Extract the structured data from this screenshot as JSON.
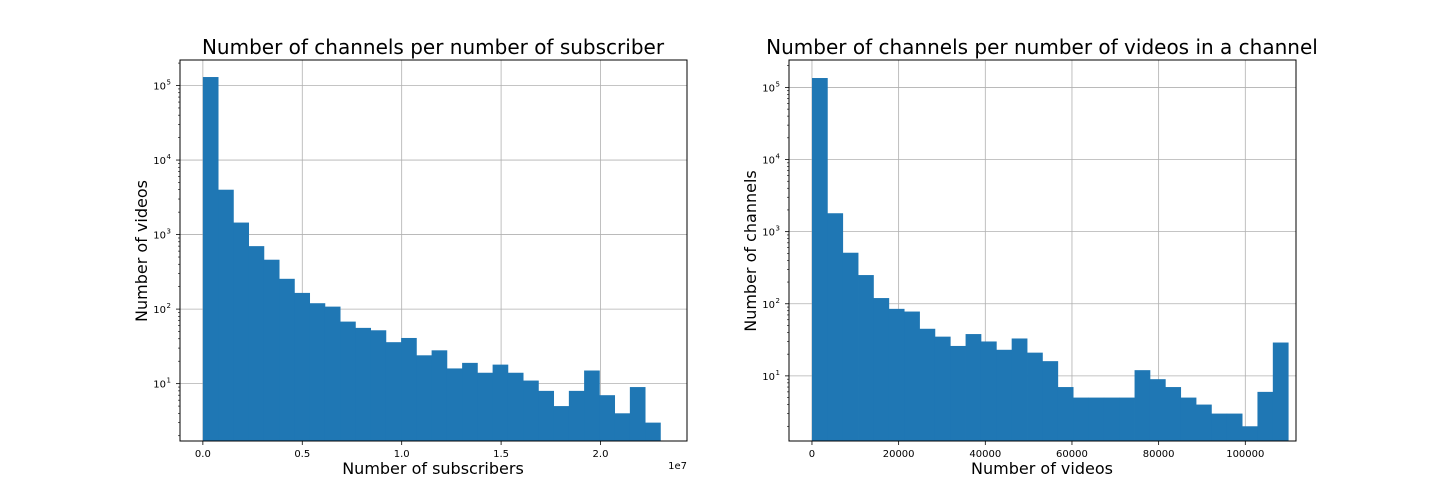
{
  "chart_data": [
    {
      "type": "bar",
      "title": "Number of channels per number of subscriber",
      "xlabel": "Number of subscribers",
      "ylabel": "Number of videos",
      "x_offset_label": "1e7",
      "x_ticks": [
        0.0,
        0.5,
        1.0,
        1.5,
        2.0
      ],
      "x_tick_labels": [
        "0.0",
        "0.5",
        "1.0",
        "1.5",
        "2.0"
      ],
      "xlim": [
        -0.115,
        2.435
      ],
      "y_scale": "log",
      "ylim": [
        1.7,
        220000
      ],
      "y_ticks": [
        10,
        100,
        1000,
        10000,
        100000
      ],
      "y_tick_base": "10",
      "y_tick_exponents": [
        "1",
        "2",
        "3",
        "4",
        "5"
      ],
      "grid": true,
      "bar_color": "#1f77b4",
      "bin_start": 0.0,
      "bin_width": 0.0767,
      "values": [
        130000,
        4000,
        1450,
        700,
        460,
        255,
        165,
        120,
        108,
        68,
        56,
        52,
        36,
        41,
        24,
        28,
        16,
        19,
        14,
        18,
        14,
        11,
        8,
        5,
        8,
        15,
        7,
        4,
        9,
        3
      ]
    },
    {
      "type": "bar",
      "title": "Number of channels per number of videos in a channel",
      "xlabel": "Number of videos",
      "ylabel": "Number of channels",
      "x_ticks": [
        0,
        20000,
        40000,
        60000,
        80000,
        100000
      ],
      "x_tick_labels": [
        "0",
        "20000",
        "40000",
        "60000",
        "80000",
        "100000"
      ],
      "xlim": [
        -5300,
        111700
      ],
      "y_scale": "log",
      "ylim": [
        1.25,
        240000
      ],
      "y_ticks": [
        10,
        100,
        1000,
        10000,
        100000
      ],
      "y_tick_base": "10",
      "y_tick_exponents": [
        "1",
        "2",
        "3",
        "4",
        "5"
      ],
      "grid": true,
      "bar_color": "#1f77b4",
      "bin_start": 0,
      "bin_width": 3545,
      "values": [
        135000,
        1800,
        510,
        250,
        120,
        85,
        78,
        45,
        35,
        26,
        38,
        30,
        23,
        33,
        21,
        16,
        7,
        5,
        5,
        5,
        5,
        12,
        9,
        7,
        5,
        4,
        3,
        3,
        2,
        6,
        29
      ]
    }
  ]
}
